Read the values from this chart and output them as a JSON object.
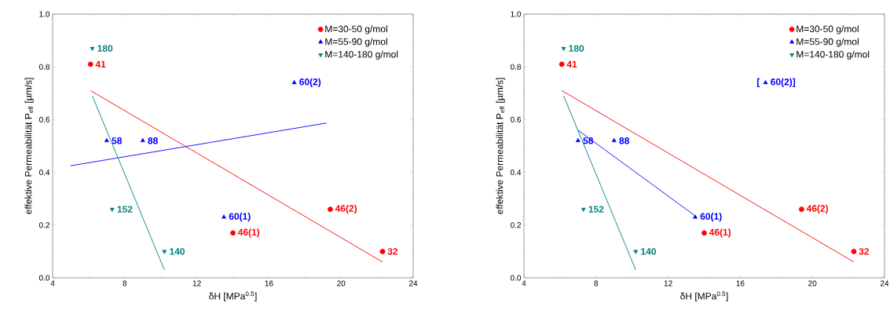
{
  "chart_data": [
    {
      "type": "scatter",
      "xlabel": "δH [MPa$^{0.5}$]",
      "ylabel": "effektive Permeabilität P$_{eff}$ [µm/s]",
      "xlim": [
        4,
        24
      ],
      "ylim": [
        0,
        1
      ],
      "xticks": [
        4,
        8,
        12,
        16,
        20,
        24
      ],
      "yticks": [
        {
          "value": 0,
          "label": "0.0"
        },
        {
          "value": 0.2,
          "label": "0.2"
        },
        {
          "value": 0.4,
          "label": "0.4"
        },
        {
          "value": 0.6,
          "label": "0.6"
        },
        {
          "value": 0.8,
          "label": "0.8"
        },
        {
          "value": 1,
          "label": "1.0"
        }
      ],
      "legend": "top right",
      "annotations": [
        {
          "text": "41",
          "x": 6.1,
          "y": 0.81
        },
        {
          "text": "46(1)",
          "x": 14.0,
          "y": 0.17
        },
        {
          "text": "46(2)",
          "x": 19.4,
          "y": 0.26
        },
        {
          "text": "32",
          "x": 22.3,
          "y": 0.1
        },
        {
          "text": "58",
          "x": 7.0,
          "y": 0.52
        },
        {
          "text": "88",
          "x": 9.0,
          "y": 0.52
        },
        {
          "text": "60(1)",
          "x": 13.5,
          "y": 0.23
        },
        {
          "text": "60(2)",
          "x": 17.4,
          "y": 0.74
        },
        {
          "text": "180",
          "x": 6.2,
          "y": 0.87
        },
        {
          "text": "152",
          "x": 7.3,
          "y": 0.26
        },
        {
          "text": "140",
          "x": 10.2,
          "y": 0.1
        }
      ],
      "series": [
        {
          "name": "M=30-50 g/mol",
          "marker": "circle",
          "color": "#ff0000",
          "x": [
            6.1,
            14.0,
            19.4,
            22.3
          ],
          "values": [
            0.81,
            0.17,
            0.26,
            0.1
          ]
        },
        {
          "name": "M=55-90 g/mol",
          "marker": "triangle",
          "color": "#0000ff",
          "x": [
            7.0,
            9.0,
            13.5,
            17.4
          ],
          "values": [
            0.52,
            0.52,
            0.23,
            0.74
          ]
        },
        {
          "name": "M=140-180 g/mol",
          "marker": "triangle down",
          "color": "#008080",
          "x": [
            6.2,
            7.3,
            10.2
          ],
          "values": [
            0.87,
            0.26,
            0.1
          ]
        },
        {
          "type": "line",
          "color": "#ff0000",
          "x": [
            6.1,
            22.3
          ],
          "values": [
            0.71,
            0.06
          ]
        },
        {
          "type": "line",
          "color": "#0000ff",
          "x": [
            5.0,
            19.2
          ],
          "values": [
            0.425,
            0.587
          ]
        },
        {
          "type": "line",
          "color": "#008080",
          "x": [
            6.2,
            10.2
          ],
          "values": [
            0.69,
            0.03
          ]
        }
      ]
    },
    {
      "type": "scatter",
      "xlabel": "δH [MPa$^{0.5}$]",
      "ylabel": "effektive Permeabilität P$_{eff}$ [µm/s]",
      "xlim": [
        4,
        24
      ],
      "ylim": [
        0,
        1
      ],
      "xticks": [
        4,
        8,
        12,
        16,
        20,
        24
      ],
      "yticks": [
        {
          "value": 0,
          "label": "0.0"
        },
        {
          "value": 0.2,
          "label": "0.2"
        },
        {
          "value": 0.4,
          "label": "0.4"
        },
        {
          "value": 0.6,
          "label": "0.6"
        },
        {
          "value": 0.8,
          "label": "0.8"
        },
        {
          "value": 1,
          "label": "1.0"
        }
      ],
      "legend": "top right",
      "annotations": [
        {
          "text": "41",
          "x": 6.1,
          "y": 0.81
        },
        {
          "text": "46(1)",
          "x": 14.0,
          "y": 0.17
        },
        {
          "text": "46(2)",
          "x": 19.4,
          "y": 0.26
        },
        {
          "text": "32",
          "x": 22.3,
          "y": 0.1
        },
        {
          "text": "58",
          "x": 7.0,
          "y": 0.52
        },
        {
          "text": "88",
          "x": 9.0,
          "y": 0.52
        },
        {
          "text": "60(1)",
          "x": 13.5,
          "y": 0.23
        },
        {
          "text": "[",
          "x": 17.4,
          "y": 0.74
        },
        {
          "text": "60(2)]",
          "x": 17.4,
          "y": 0.74
        },
        {
          "text": "180",
          "x": 6.2,
          "y": 0.87
        },
        {
          "text": "152",
          "x": 7.3,
          "y": 0.26
        },
        {
          "text": "140",
          "x": 10.2,
          "y": 0.1
        }
      ],
      "series": [
        {
          "name": "M=30-50 g/mol",
          "marker": "circle",
          "color": "#ff0000",
          "x": [
            6.1,
            14.0,
            19.4,
            22.3
          ],
          "values": [
            0.81,
            0.17,
            0.26,
            0.1
          ]
        },
        {
          "name": "M=55-90 g/mol",
          "marker": "triangle",
          "color": "#0000ff",
          "x": [
            7.0,
            9.0,
            13.5,
            17.4
          ],
          "values": [
            0.52,
            0.52,
            0.23,
            0.74
          ]
        },
        {
          "name": "M=140-180 g/mol",
          "marker": "triangle down",
          "color": "#008080",
          "x": [
            6.2,
            7.3,
            10.2
          ],
          "values": [
            0.87,
            0.26,
            0.1
          ]
        },
        {
          "type": "line",
          "color": "#ff0000",
          "x": [
            6.1,
            22.3
          ],
          "values": [
            0.71,
            0.06
          ]
        },
        {
          "type": "line",
          "color": "#0000ff",
          "x": [
            7.0,
            13.5
          ],
          "values": [
            0.56,
            0.235
          ]
        },
        {
          "type": "line",
          "color": "#008080",
          "x": [
            6.2,
            10.2
          ],
          "values": [
            0.69,
            0.03
          ]
        }
      ]
    }
  ]
}
